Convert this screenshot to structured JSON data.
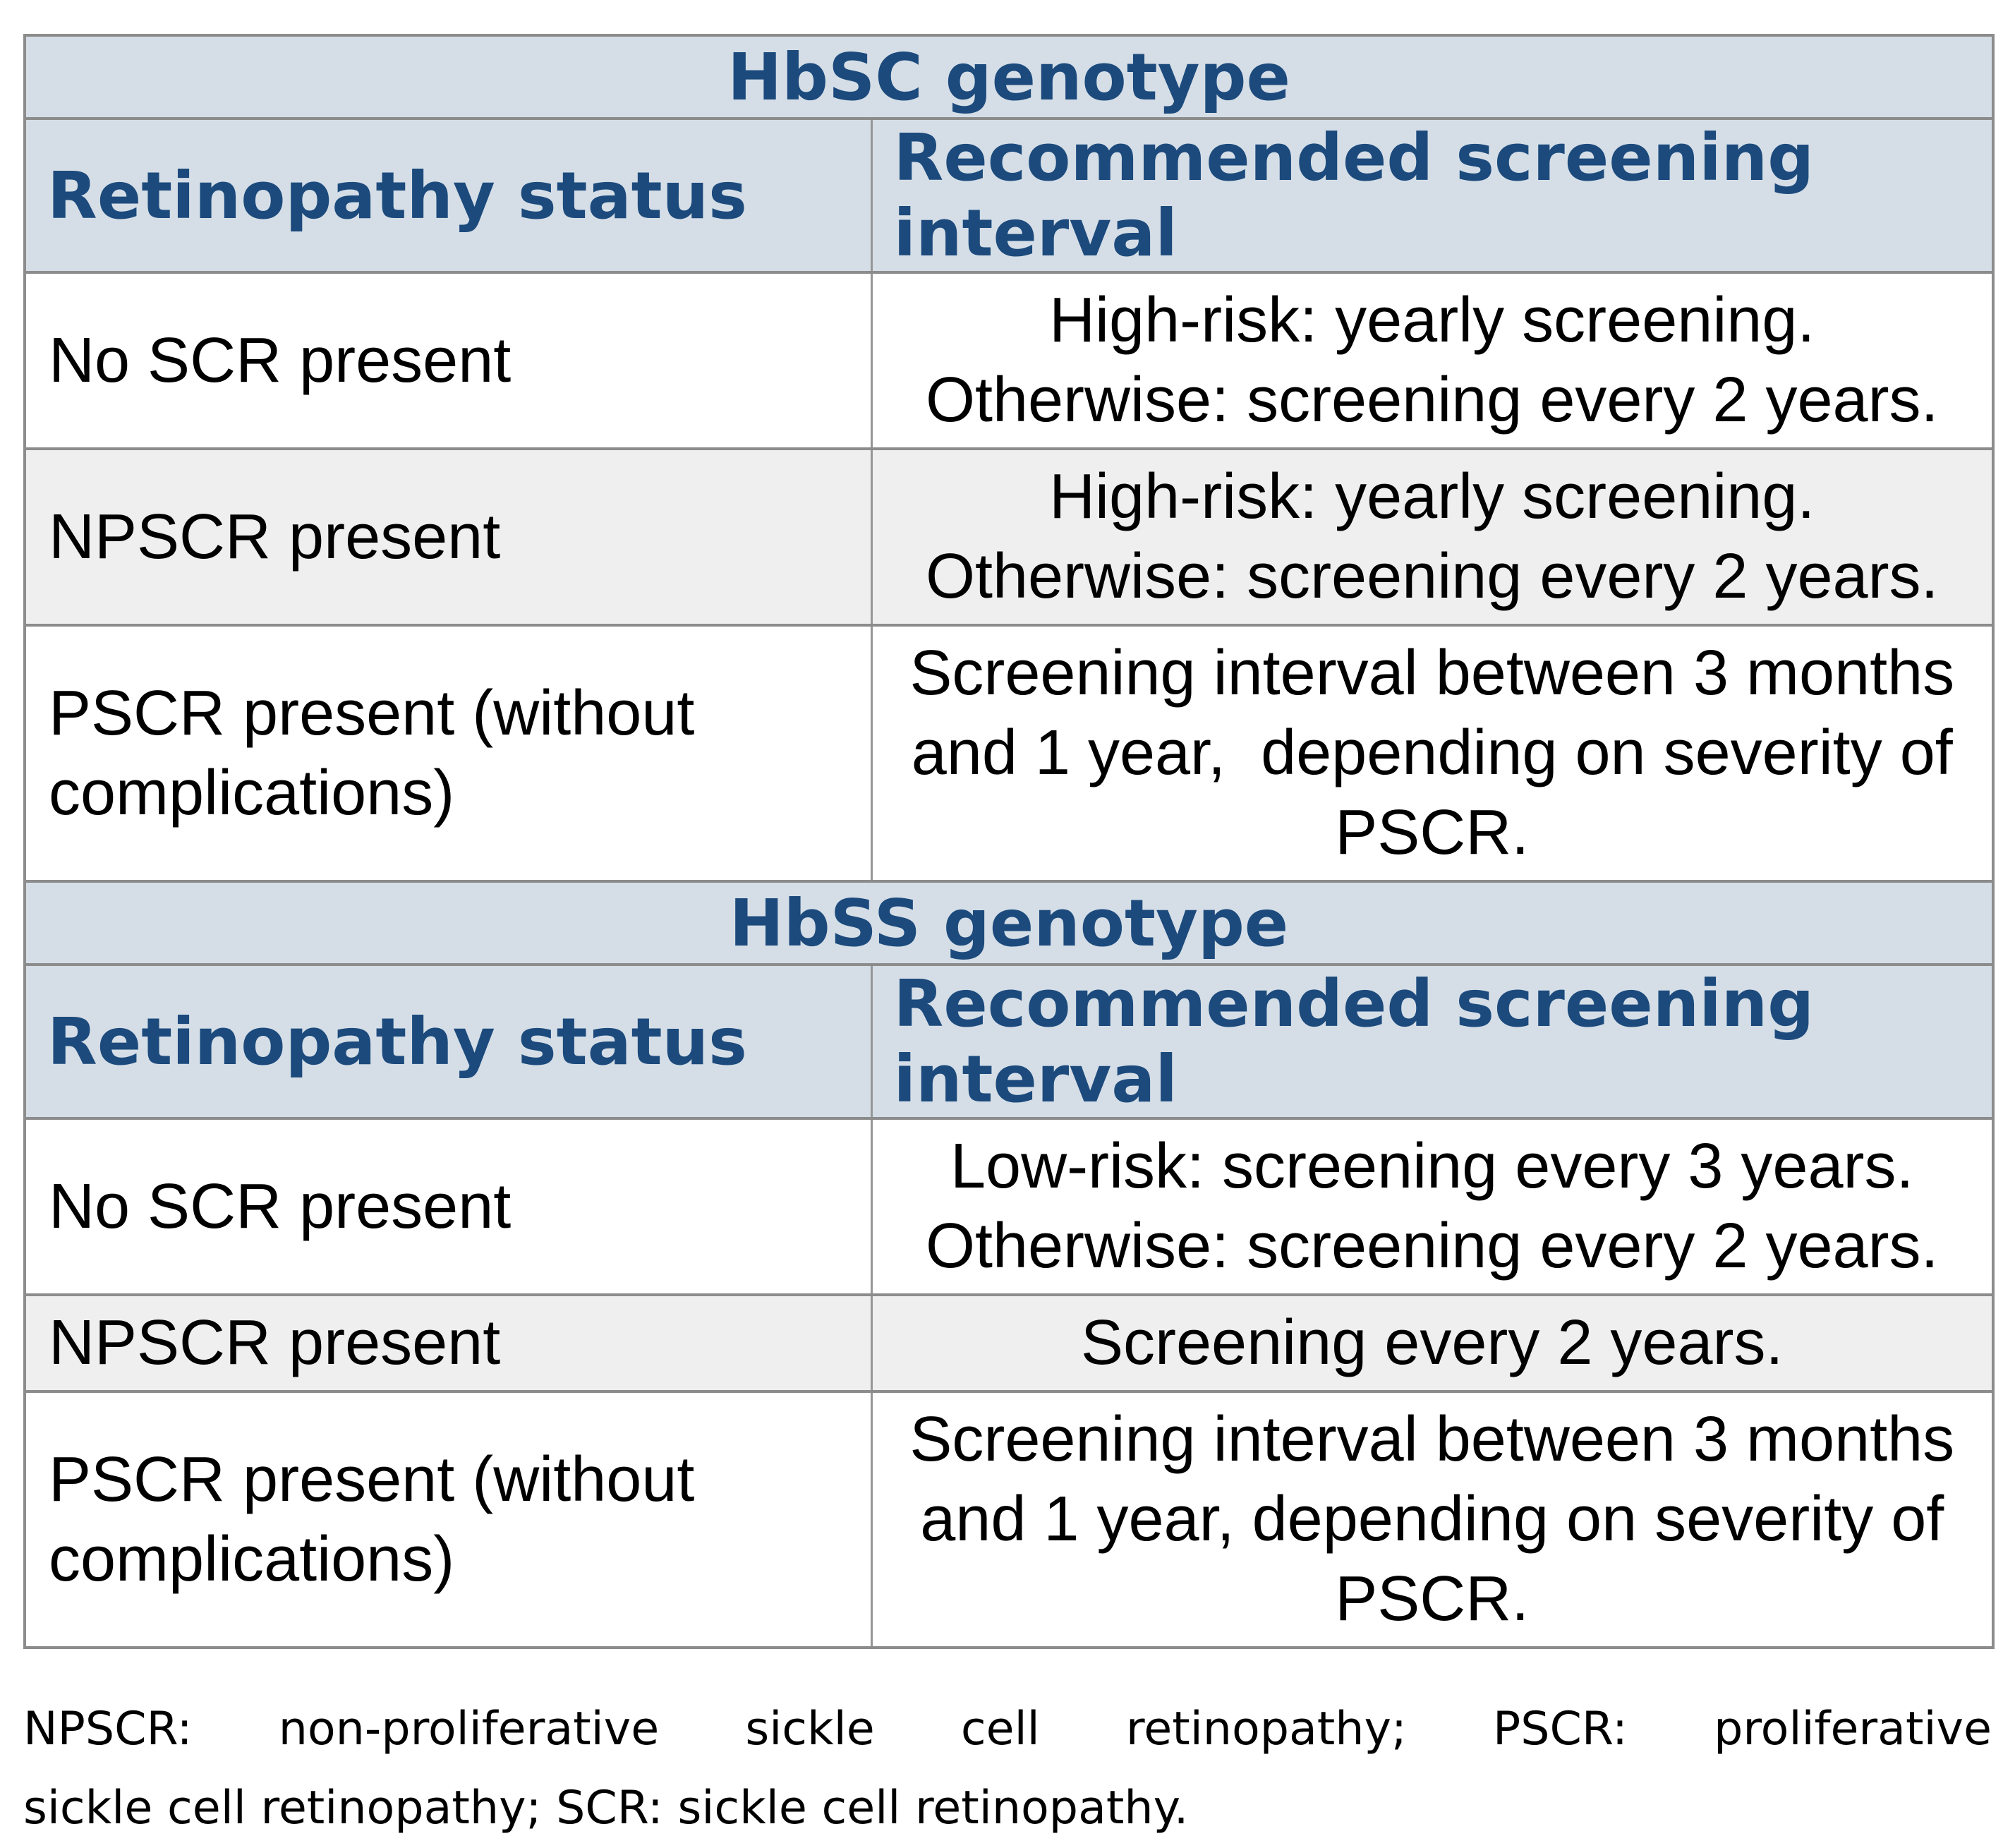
{
  "colors": {
    "header_bg": "#d5dee7",
    "header_text": "#1c4a7c",
    "row_bg": "#ffffff",
    "row_alt_bg": "#efefef",
    "border_horizontal": "#8c8c8c",
    "border_vertical": "#969696",
    "body_text": "#000000"
  },
  "tables": [
    {
      "genotype_header": "HbSC genotype",
      "columns": [
        "Retinopathy status",
        "Recommended screening interval"
      ],
      "rows": [
        {
          "status": "No SCR present",
          "interval": "High-risk: yearly screening.\nOtherwise: screening every 2 years."
        },
        {
          "status": "NPSCR present",
          "interval": "High-risk: yearly screening.\nOtherwise: screening every 2 years."
        },
        {
          "status": "PSCR present (without\ncomplications)",
          "interval": "Screening interval between 3 months\nand 1 year,  depending on severity of\nPSCR."
        }
      ]
    },
    {
      "genotype_header": "HbSS genotype",
      "columns": [
        "Retinopathy status",
        "Recommended screening interval"
      ],
      "rows": [
        {
          "status": "No SCR present",
          "interval": "Low-risk: screening every 3 years.\nOtherwise: screening every 2 years."
        },
        {
          "status": "NPSCR present",
          "interval": "Screening every 2 years."
        },
        {
          "status": "PSCR present (without\ncomplications)",
          "interval": "Screening interval between 3 months\nand 1 year, depending on severity of\nPSCR."
        }
      ]
    }
  ],
  "footnote": {
    "line1": "NPSCR: non-proliferative sickle cell retinopathy; PSCR: proliferative",
    "line2": "sickle cell retinopathy; SCR: sickle cell retinopathy."
  }
}
